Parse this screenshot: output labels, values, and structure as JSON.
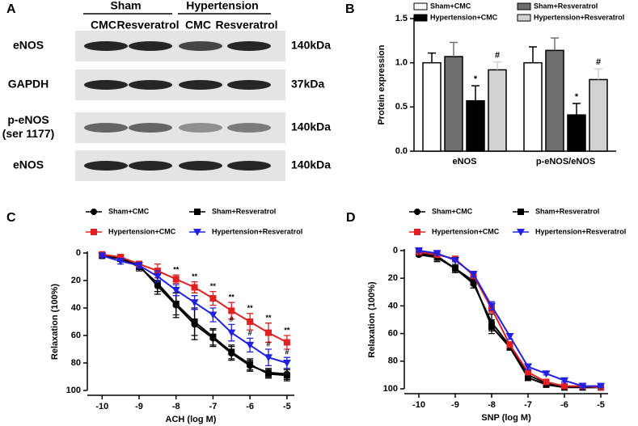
{
  "blot": {
    "panel": "A",
    "groups": [
      "Sham",
      "Hypertension"
    ],
    "lanes": [
      "CMC",
      "Resveratrol",
      "CMC",
      "Resveratrol"
    ],
    "rows": [
      {
        "label": [
          "eNOS"
        ],
        "size": "140kDa"
      },
      {
        "label": [
          "GAPDH"
        ],
        "size": "37kDa"
      },
      {
        "label": [
          "p-eNOS",
          "(ser 1177)"
        ],
        "size": "140kDa"
      },
      {
        "label": [
          "eNOS"
        ],
        "size": "140kDa"
      }
    ]
  },
  "chart_data": [
    {
      "type": "bar",
      "panel": "B",
      "ylabel": "Protein expression",
      "categories": [
        "eNOS",
        "p-eNOS/eNOS"
      ],
      "series": [
        {
          "name": "Sham+CMC",
          "color": "#ffffff",
          "values": [
            1.0,
            1.0
          ],
          "errors": [
            0.11,
            0.18
          ]
        },
        {
          "name": "Sham+Resveratrol",
          "color": "#707070",
          "values": [
            1.07,
            1.14
          ],
          "errors": [
            0.16,
            0.14
          ]
        },
        {
          "name": "Hypertension+CMC",
          "color": "#000000",
          "values": [
            0.57,
            0.41
          ],
          "errors": [
            0.17,
            0.13
          ],
          "marks": [
            "*",
            "*"
          ]
        },
        {
          "name": "Hypertension+Resveratrol",
          "color": "#d2d2d2",
          "values": [
            0.92,
            0.81
          ],
          "errors": [
            0.09,
            0.12
          ],
          "marks": [
            "#",
            "#"
          ]
        }
      ],
      "ylim": [
        0,
        1.5
      ],
      "yticks": [
        {
          "value": 0,
          "label": "0.0"
        },
        0.5,
        {
          "value": 1,
          "label": "1.0"
        },
        1.5
      ]
    },
    {
      "type": "line",
      "panel": "C",
      "xlabel": "ACH (log M)",
      "ylabel": "Relaxation (100%)",
      "x": [
        -10,
        -9.5,
        -9,
        -8.5,
        -8,
        -7.5,
        -7,
        -6.5,
        -6,
        -5.5,
        -5
      ],
      "series": [
        {
          "name": "Sham+CMC",
          "color": "#000000",
          "marker": "circle",
          "values": [
            2,
            4,
            9,
            24,
            38,
            52,
            62,
            73,
            82,
            87,
            88
          ],
          "errors": [
            1,
            2,
            3,
            6,
            9,
            11,
            6,
            5,
            4,
            3,
            4
          ]
        },
        {
          "name": "Sham+Resveratrol",
          "color": "#000000",
          "marker": "square",
          "values": [
            2,
            4,
            10,
            22,
            37,
            50,
            61,
            72,
            81,
            88,
            89
          ],
          "errors": [
            1,
            2,
            3,
            6,
            8,
            10,
            6,
            5,
            4,
            3,
            4
          ]
        },
        {
          "name": "Hypertension+CMC",
          "color": "#e02020",
          "marker": "square",
          "values": [
            1,
            3,
            8,
            13,
            19,
            25,
            33,
            42,
            50,
            58,
            65
          ],
          "errors": [
            1,
            2,
            2,
            5,
            3,
            4,
            5,
            6,
            6,
            7,
            5
          ],
          "marks": [
            null,
            null,
            null,
            null,
            "**",
            "**",
            "**",
            "**",
            "**",
            "**",
            "**"
          ]
        },
        {
          "name": "Hypertension+Resveratrol",
          "color": "#2020e0",
          "marker": "triangle-down",
          "values": [
            2,
            6,
            9,
            17,
            27,
            36,
            45,
            58,
            67,
            76,
            80
          ],
          "errors": [
            1,
            2,
            2,
            4,
            4,
            5,
            5,
            6,
            5,
            6,
            4
          ],
          "marks": [
            null,
            null,
            null,
            null,
            null,
            null,
            null,
            "#",
            "#",
            "#",
            "#"
          ]
        }
      ],
      "xlim": [
        -10.4,
        -4.8
      ],
      "xticks": [
        -10,
        -9,
        -8,
        -7,
        -6,
        -5
      ],
      "ylim": [
        0,
        100
      ],
      "yticks": [
        0,
        20,
        40,
        60,
        80,
        100
      ],
      "y_inverted": true
    },
    {
      "type": "line",
      "panel": "D",
      "xlabel": "SNP (log M)",
      "ylabel": "Relaxation (100%)",
      "x": [
        -10,
        -9.5,
        -9,
        -8.5,
        -8,
        -7.5,
        -7,
        -6.5,
        -6,
        -5.5,
        -5
      ],
      "series": [
        {
          "name": "Sham+CMC",
          "color": "#000000",
          "marker": "circle",
          "values": [
            3,
            5,
            13,
            24,
            52,
            69,
            90,
            96,
            98,
            99,
            99
          ],
          "errors": [
            1,
            2,
            2,
            3,
            6,
            2,
            2,
            1,
            1,
            1,
            1
          ]
        },
        {
          "name": "Sham+Resveratrol",
          "color": "#000000",
          "marker": "square",
          "values": [
            2,
            4,
            13,
            22,
            55,
            70,
            92,
            97,
            99,
            99,
            99
          ],
          "errors": [
            1,
            4,
            3,
            3,
            5,
            2,
            2,
            1,
            1,
            1,
            1
          ]
        },
        {
          "name": "Hypertension+CMC",
          "color": "#e02020",
          "marker": "square",
          "values": [
            1,
            3,
            6,
            18,
            42,
            68,
            88,
            95,
            98,
            98,
            99
          ],
          "errors": [
            1,
            1,
            1,
            2,
            3,
            2,
            2,
            1,
            1,
            1,
            1
          ]
        },
        {
          "name": "Hypertension+Resveratrol",
          "color": "#2020e0",
          "marker": "triangle-down",
          "values": [
            0,
            2,
            7,
            17,
            40,
            62,
            84,
            89,
            94,
            98,
            98
          ],
          "errors": [
            1,
            1,
            1,
            2,
            3,
            2,
            2,
            1,
            1,
            1,
            1
          ]
        }
      ],
      "xlim": [
        -10.4,
        -4.8
      ],
      "xticks": [
        -10,
        -9,
        -8,
        -7,
        -6,
        -5
      ],
      "ylim": [
        0,
        100
      ],
      "yticks": [
        0,
        20,
        40,
        60,
        80,
        100
      ],
      "y_inverted": true
    }
  ]
}
